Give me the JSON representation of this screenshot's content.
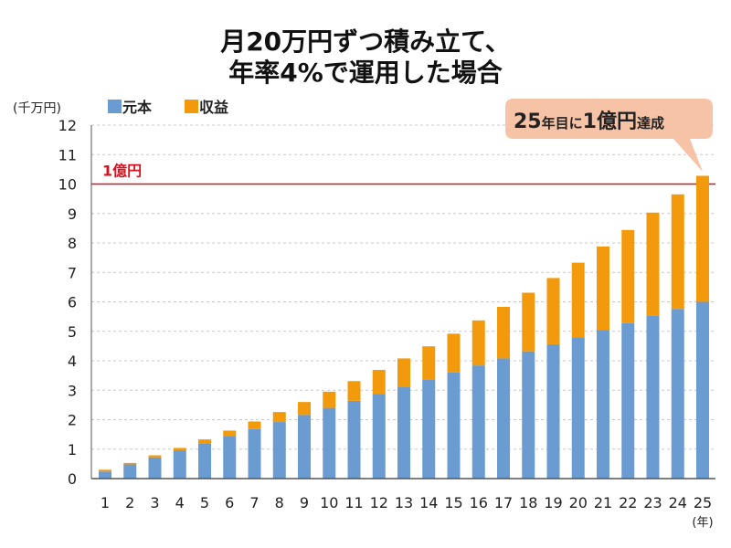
{
  "chart_data": {
    "type": "bar",
    "stacked": true,
    "title": [
      "月20万円ずつ積み立て、",
      "年率4%で運用した場合"
    ],
    "ylabel": "(千万円)",
    "xlabel": "(年)",
    "ylim": [
      0,
      12
    ],
    "yticks": [
      0,
      1,
      2,
      3,
      4,
      5,
      6,
      7,
      8,
      9,
      10,
      11,
      12
    ],
    "grid": true,
    "legend_position": "top-left",
    "categories": [
      "1",
      "2",
      "3",
      "4",
      "5",
      "6",
      "7",
      "8",
      "9",
      "10",
      "11",
      "12",
      "13",
      "14",
      "15",
      "16",
      "17",
      "18",
      "19",
      "20",
      "21",
      "22",
      "23",
      "24",
      "25"
    ],
    "series": [
      {
        "name": "元本",
        "color": "#6a9bd1",
        "values": [
          0.24,
          0.48,
          0.72,
          0.96,
          1.2,
          1.44,
          1.68,
          1.92,
          2.16,
          2.4,
          2.64,
          2.88,
          3.12,
          3.36,
          3.6,
          3.84,
          4.08,
          4.32,
          4.56,
          4.8,
          5.04,
          5.28,
          5.52,
          5.76,
          6.0
        ]
      },
      {
        "name": "収益",
        "color": "#f29a0b",
        "values": [
          0.06,
          0.05,
          0.07,
          0.08,
          0.13,
          0.19,
          0.26,
          0.34,
          0.44,
          0.55,
          0.67,
          0.81,
          0.96,
          1.13,
          1.32,
          1.53,
          1.75,
          1.99,
          2.25,
          2.53,
          2.84,
          3.16,
          3.51,
          3.89,
          4.28
        ]
      }
    ],
    "reference_line": {
      "value": 10,
      "label": "1億円",
      "color": "#d7121e"
    },
    "annotation": {
      "parts": [
        "25",
        "年目に",
        "1億円",
        "達成"
      ],
      "target_category": "25",
      "fill": "#f6c3a6"
    }
  }
}
